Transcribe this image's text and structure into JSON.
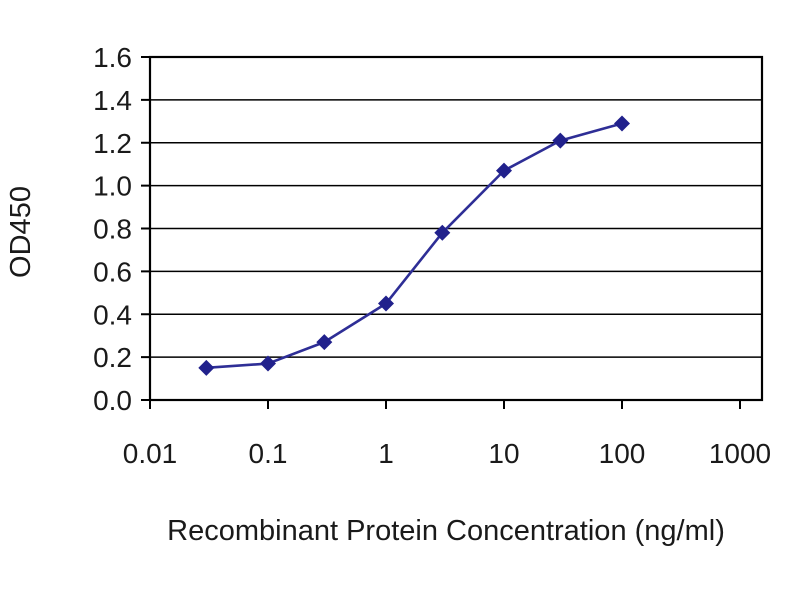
{
  "chart_data": {
    "type": "line",
    "title": "",
    "xlabel": "Recombinant Protein Concentration (ng/ml)",
    "ylabel": "OD450",
    "x_scale": "log",
    "x": [
      0.03,
      0.1,
      0.3,
      1,
      3,
      10,
      30,
      100
    ],
    "y": [
      0.15,
      0.17,
      0.27,
      0.45,
      0.78,
      1.07,
      1.21,
      1.29
    ],
    "x_ticks": [
      0.01,
      0.1,
      1,
      10,
      100,
      1000
    ],
    "x_tick_labels": [
      "0.01",
      "0.1",
      "1",
      "10",
      "100",
      "1000"
    ],
    "y_ticks": [
      0.0,
      0.2,
      0.4,
      0.6,
      0.8,
      1.0,
      1.2,
      1.4,
      1.6
    ],
    "y_tick_labels": [
      "0.0",
      "0.2",
      "0.4",
      "0.6",
      "0.8",
      "1.0",
      "1.2",
      "1.4",
      "1.6"
    ],
    "xlim_log": [
      -2,
      3
    ],
    "ylim": [
      0,
      1.6
    ],
    "grid": "horizontal",
    "legend": "none",
    "line_color": "#2e2e96",
    "marker": "diamond",
    "marker_color": "#21218c",
    "axis_color": "#000000",
    "text_color": "#1a1a1a"
  }
}
